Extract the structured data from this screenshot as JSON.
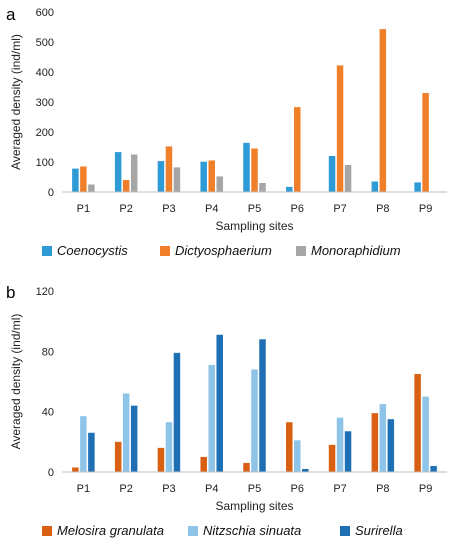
{
  "chart_data": [
    {
      "type": "bar",
      "panel_label": "a",
      "categories": [
        "P1",
        "P2",
        "P3",
        "P4",
        "P5",
        "P6",
        "P7",
        "P8",
        "P9"
      ],
      "series": [
        {
          "name": "Coenocystis",
          "color": "#2E9BD6",
          "values": [
            78,
            133,
            103,
            101,
            164,
            17,
            120,
            35,
            32
          ]
        },
        {
          "name": "Dictyosphaerium",
          "color": "#F07F2A",
          "values": [
            85,
            40,
            152,
            105,
            145,
            283,
            422,
            543,
            330
          ]
        },
        {
          "name": "Monoraphidium",
          "color": "#A6A6A6",
          "values": [
            25,
            125,
            82,
            52,
            30,
            0,
            90,
            0,
            0
          ]
        }
      ],
      "xlabel": "Sampling sites",
      "ylabel": "Averaged density (ind/ml)",
      "ylim": [
        0,
        600
      ],
      "yticks": [
        0,
        100,
        200,
        300,
        400,
        500,
        600
      ],
      "grid": false,
      "legend": "bottom"
    },
    {
      "type": "bar",
      "panel_label": "b",
      "categories": [
        "P1",
        "P2",
        "P3",
        "P4",
        "P5",
        "P6",
        "P7",
        "P8",
        "P9"
      ],
      "series": [
        {
          "name": "Melosira granulata",
          "color": "#D95F12",
          "values": [
            3,
            20,
            16,
            10,
            6,
            33,
            18,
            39,
            65
          ]
        },
        {
          "name": "Nitzschia sinuata",
          "color": "#8EC4E8",
          "values": [
            37,
            52,
            33,
            71,
            68,
            21,
            36,
            45,
            50
          ]
        },
        {
          "name": "Surirella",
          "color": "#1F6FB5",
          "values": [
            26,
            44,
            79,
            91,
            88,
            2,
            27,
            35,
            4
          ]
        }
      ],
      "xlabel": "Sampling sites",
      "ylabel": "Averaged density (ind/ml)",
      "ylim": [
        0,
        120
      ],
      "yticks": [
        0,
        40,
        80,
        120
      ],
      "grid": false,
      "legend": "bottom"
    }
  ]
}
